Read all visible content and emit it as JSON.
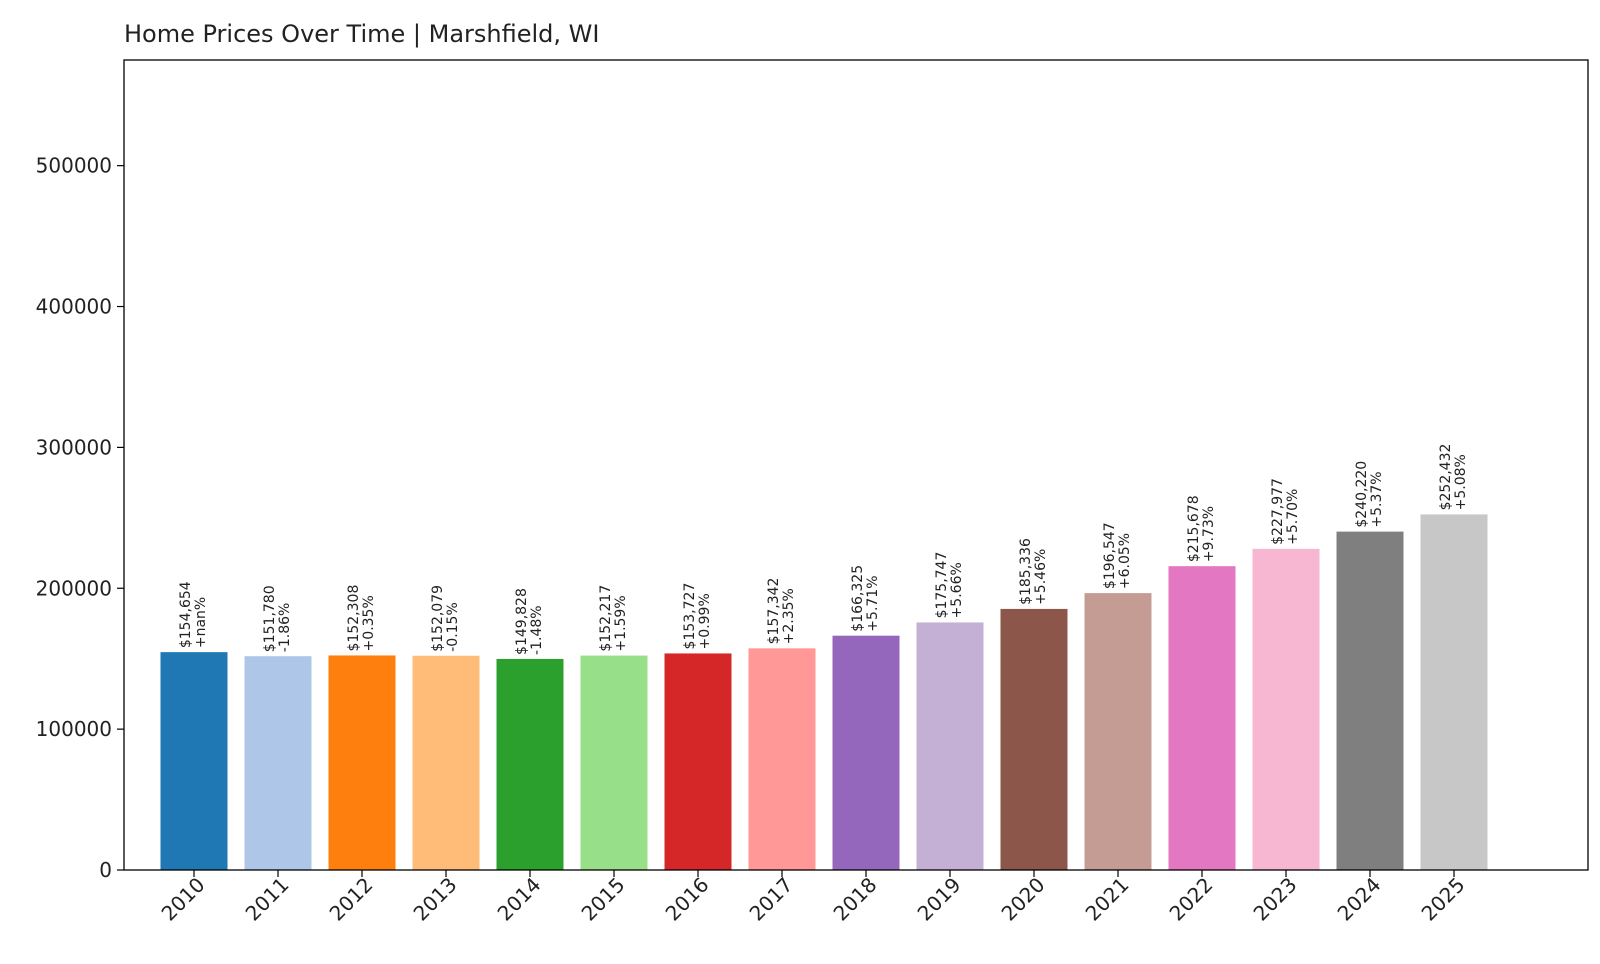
{
  "chart_data": {
    "type": "bar",
    "title": "Home Prices Over Time | Marshfield, WI",
    "xlabel": "",
    "ylabel": "",
    "ylim": [
      0,
      575000
    ],
    "yticks": [
      0,
      100000,
      200000,
      300000,
      400000,
      500000
    ],
    "ytick_labels": [
      "0",
      "100000",
      "200000",
      "300000",
      "400000",
      "500000"
    ],
    "grid": false,
    "categories": [
      "2010",
      "2011",
      "2012",
      "2013",
      "2014",
      "2015",
      "2016",
      "2017",
      "2018",
      "2019",
      "2020",
      "2021",
      "2022",
      "2023",
      "2024",
      "2025"
    ],
    "values": [
      154654,
      151780,
      152308,
      152079,
      149828,
      152217,
      153727,
      157342,
      166325,
      175747,
      185336,
      196547,
      215678,
      227977,
      240220,
      252432
    ],
    "value_labels": [
      "$154,654",
      "$151,780",
      "$152,308",
      "$152,079",
      "$149,828",
      "$152,217",
      "$153,727",
      "$157,342",
      "$166,325",
      "$175,747",
      "$185,336",
      "$196,547",
      "$215,678",
      "$227,977",
      "$240,220",
      "$252,432"
    ],
    "change_labels": [
      "+nan%",
      "-1.86%",
      "+0.35%",
      "-0.15%",
      "-1.48%",
      "+1.59%",
      "+0.99%",
      "+2.35%",
      "+5.71%",
      "+5.66%",
      "+5.46%",
      "+6.05%",
      "+9.73%",
      "+5.70%",
      "+5.37%",
      "+5.08%"
    ],
    "colors": [
      "#1f77b4",
      "#aec7e8",
      "#ff7f0e",
      "#ffbb78",
      "#2ca02c",
      "#98df8a",
      "#d62728",
      "#ff9896",
      "#9467bd",
      "#c5b0d5",
      "#8c564b",
      "#c49c94",
      "#e377c2",
      "#f7b6d2",
      "#7f7f7f",
      "#c7c7c7"
    ]
  }
}
